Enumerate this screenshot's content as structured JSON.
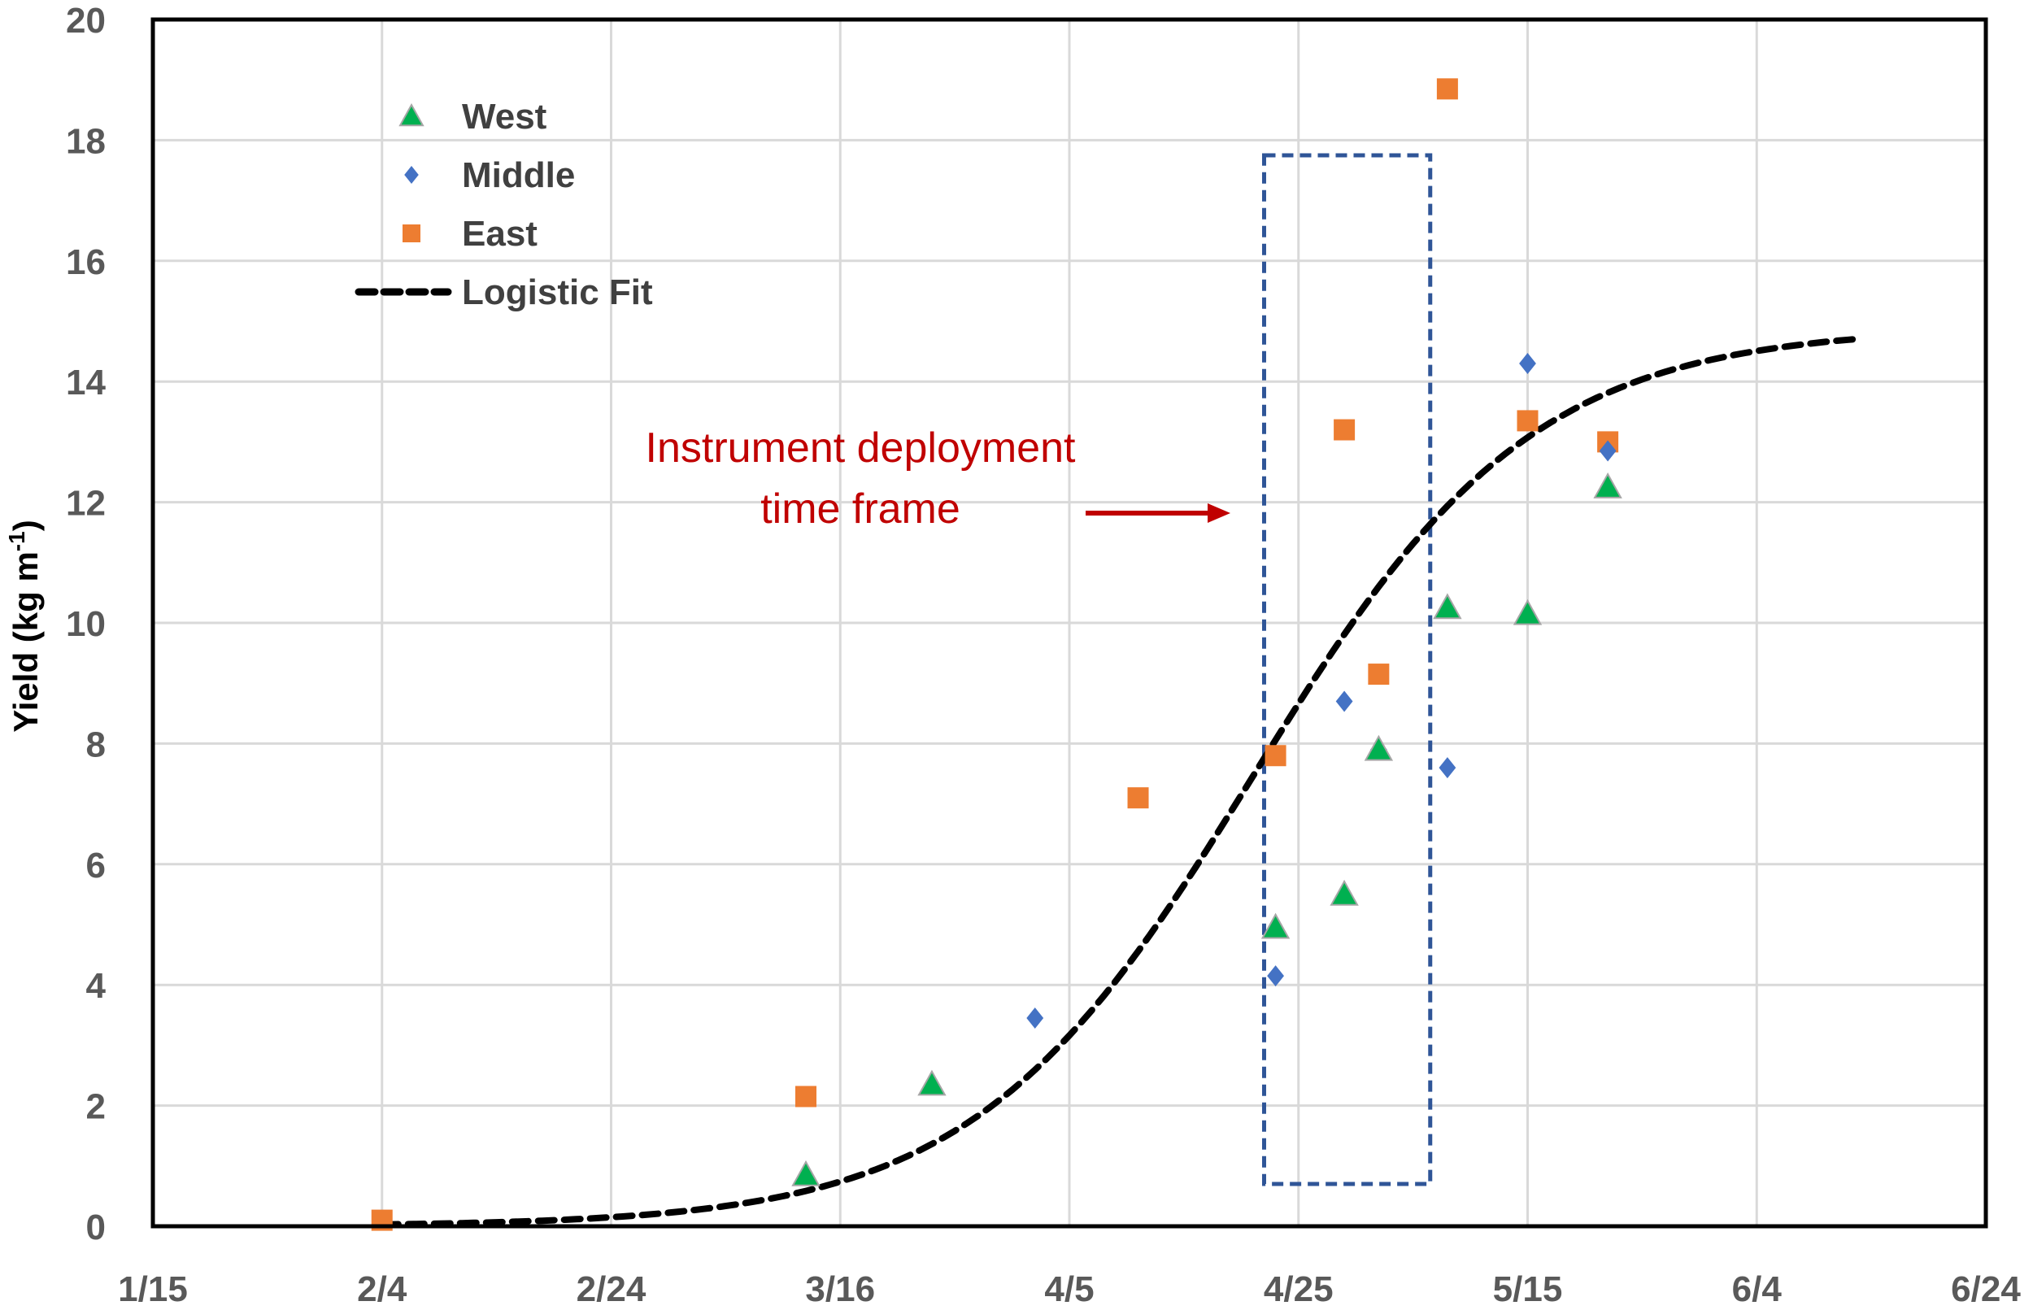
{
  "chart_data": {
    "type": "scatter",
    "title": "",
    "xlabel": "",
    "ylabel": "Yield (kg m-1)",
    "ylabel_parts": {
      "main": "Yield (kg m",
      "sup": "-1",
      "end": ")"
    },
    "x_ticks": [
      "1/15",
      "2/4",
      "2/24",
      "3/16",
      "4/5",
      "4/25",
      "5/15",
      "6/4",
      "6/24"
    ],
    "x_tick_days": [
      0,
      20,
      40,
      60,
      80,
      100,
      120,
      140,
      160
    ],
    "y_ticks": [
      0,
      2,
      4,
      6,
      8,
      10,
      12,
      14,
      16,
      18,
      20
    ],
    "ylim": [
      0,
      20
    ],
    "xlim_days_from_1_15": [
      0,
      160
    ],
    "grid": true,
    "legend_position": "upper-left inside",
    "series": [
      {
        "name": "West",
        "marker": "triangle",
        "color": "#00b050",
        "points": [
          {
            "date": "3/13",
            "day": 57,
            "y": 0.85
          },
          {
            "date": "3/24",
            "day": 68,
            "y": 2.35
          },
          {
            "date": "4/23",
            "day": 98,
            "y": 4.95
          },
          {
            "date": "4/29",
            "day": 104,
            "y": 5.5
          },
          {
            "date": "5/2",
            "day": 107,
            "y": 7.9
          },
          {
            "date": "5/8",
            "day": 113,
            "y": 10.25
          },
          {
            "date": "5/15",
            "day": 120,
            "y": 10.15
          },
          {
            "date": "5/21",
            "day": 127,
            "y": 12.25
          }
        ]
      },
      {
        "name": "Middle",
        "marker": "diamond",
        "color": "#4472c4",
        "points": [
          {
            "date": "4/1",
            "day": 77,
            "y": 3.45
          },
          {
            "date": "4/23",
            "day": 98,
            "y": 4.15
          },
          {
            "date": "4/29",
            "day": 104,
            "y": 8.7
          },
          {
            "date": "5/2",
            "day": 107,
            "y": 7.9
          },
          {
            "date": "5/8",
            "day": 113,
            "y": 7.6
          },
          {
            "date": "5/15",
            "day": 120,
            "y": 14.3
          },
          {
            "date": "5/21",
            "day": 127,
            "y": 12.85
          }
        ]
      },
      {
        "name": "East",
        "marker": "square",
        "color": "#ed7d31",
        "points": [
          {
            "date": "2/4",
            "day": 20,
            "y": 0.1
          },
          {
            "date": "3/13",
            "day": 57,
            "y": 2.15
          },
          {
            "date": "4/10",
            "day": 86,
            "y": 7.1
          },
          {
            "date": "4/23",
            "day": 98,
            "y": 7.8
          },
          {
            "date": "4/29",
            "day": 104,
            "y": 13.2
          },
          {
            "date": "5/2",
            "day": 107,
            "y": 9.15
          },
          {
            "date": "5/8",
            "day": 113,
            "y": 18.85
          },
          {
            "date": "5/15",
            "day": 120,
            "y": 13.35
          },
          {
            "date": "5/21",
            "day": 127,
            "y": 13.0
          }
        ]
      },
      {
        "name": "Logistic Fit",
        "marker": "dashed-line",
        "color": "#000000",
        "curve": {
          "K": 14.9,
          "r": 0.082,
          "t0_day": 96,
          "start_day": 20,
          "end_day": 149
        }
      }
    ],
    "annotations": [
      {
        "type": "text",
        "lines": [
          "Instrument deployment",
          "time frame"
        ],
        "color": "#c00000"
      },
      {
        "type": "arrow",
        "color": "#c00000"
      },
      {
        "type": "dashed-box",
        "color": "#2f5597",
        "x_day_range": [
          97,
          111.5
        ],
        "y_range": [
          0.7,
          17.75
        ]
      }
    ]
  },
  "legend": {
    "items": [
      {
        "label": "West",
        "marker": "triangle",
        "color": "#00b050"
      },
      {
        "label": "Middle",
        "marker": "diamond",
        "color": "#4472c4"
      },
      {
        "label": "East",
        "marker": "square",
        "color": "#ed7d31"
      },
      {
        "label": "Logistic Fit",
        "marker": "dashed-line",
        "color": "#000000"
      }
    ]
  },
  "annotation": {
    "line1": "Instrument deployment",
    "line2": "time frame"
  }
}
